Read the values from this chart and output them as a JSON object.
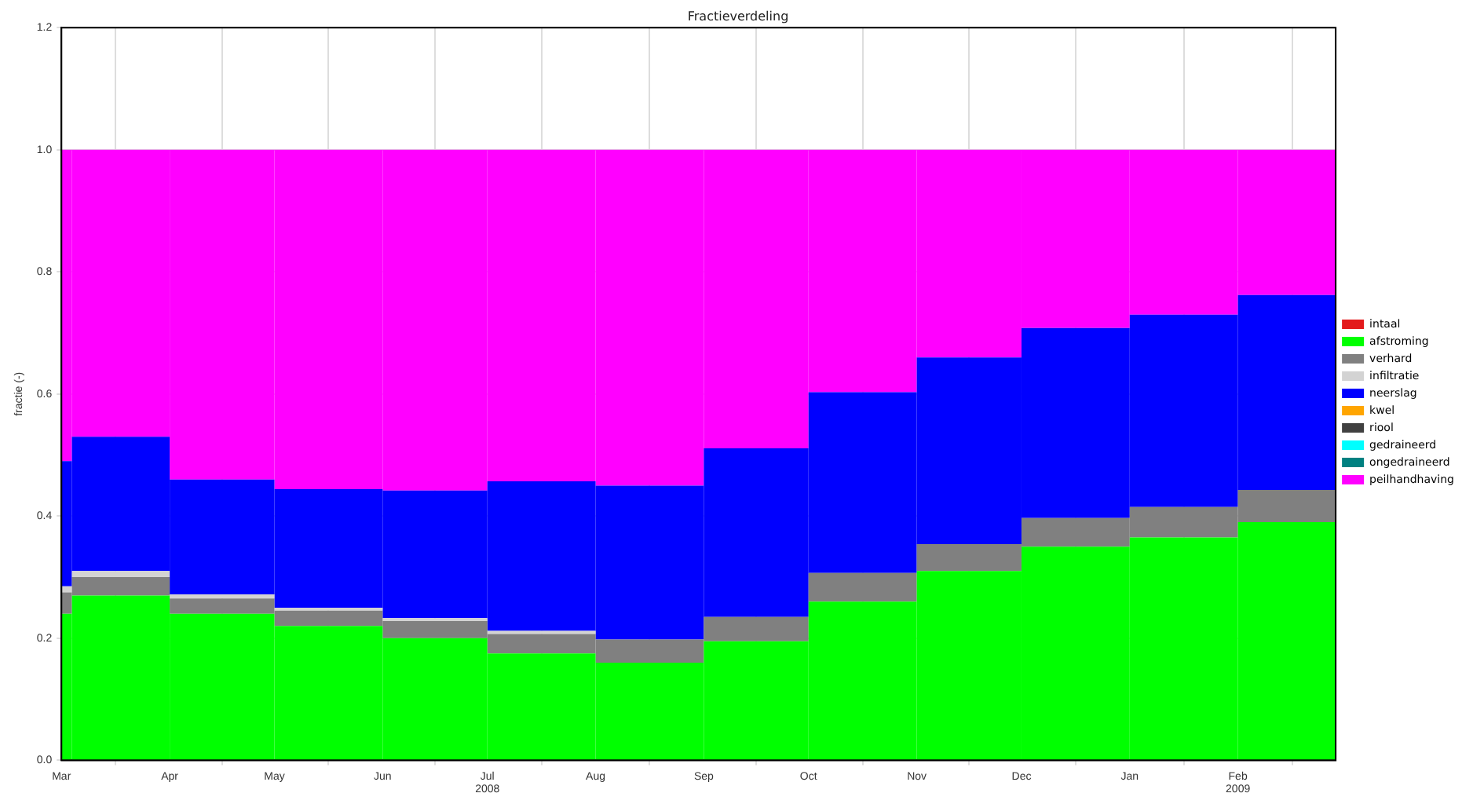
{
  "chart_data": {
    "type": "bar",
    "title": "Fractieverdeling",
    "ylabel": "fractie (-)",
    "stacked": true,
    "x": [
      "2008-03-02T12:00",
      "2008-03-18",
      "2008-04-16",
      "2008-05-16T12:00",
      "2008-06-16",
      "2008-07-16T12:00",
      "2008-08-16T12:00",
      "2008-09-16",
      "2008-10-16T12:00",
      "2008-11-16",
      "2008-12-16T12:00",
      "2009-01-16T12:00",
      "2009-02-15"
    ],
    "xlim": [
      "2008-03-01",
      "2009-03-01"
    ],
    "xticks": [
      {
        "value": "2008-03-01",
        "label": "Mar"
      },
      {
        "value": "2008-04-01",
        "label": "Apr"
      },
      {
        "value": "2008-05-01",
        "label": "May"
      },
      {
        "value": "2008-06-01",
        "label": "Jun"
      },
      {
        "value": "2008-07-01",
        "label": "Jul\n2008"
      },
      {
        "value": "2008-08-01",
        "label": "Aug"
      },
      {
        "value": "2008-09-01",
        "label": "Sep"
      },
      {
        "value": "2008-10-01",
        "label": "Oct"
      },
      {
        "value": "2008-11-01",
        "label": "Nov"
      },
      {
        "value": "2008-12-01",
        "label": "Dec"
      },
      {
        "value": "2009-01-01",
        "label": "Jan"
      },
      {
        "value": "2009-02-01",
        "label": "Feb\n2009"
      }
    ],
    "ylim": [
      0,
      1.2
    ],
    "yticks": [
      {
        "value": 0,
        "label": "0.0"
      },
      {
        "value": 0.2,
        "label": "0.2"
      },
      {
        "value": 0.4,
        "label": "0.4"
      },
      {
        "value": 0.6,
        "label": "0.6"
      },
      {
        "value": 0.8,
        "label": "0.8"
      },
      {
        "value": 1,
        "label": "1.0"
      },
      {
        "value": 1.2,
        "label": "1.2"
      }
    ],
    "grid": true,
    "legend": "right",
    "series": [
      {
        "name": "intaal",
        "color": "#e31a1c",
        "values": [
          0,
          0,
          0,
          0,
          0,
          0,
          0,
          0,
          0,
          0,
          0,
          0,
          0
        ]
      },
      {
        "name": "afstroming",
        "color": "#00ff00",
        "values": [
          0.24,
          0.27,
          0.24,
          0.22,
          0.2,
          0.175,
          0.16,
          0.195,
          0.26,
          0.31,
          0.35,
          0.365,
          0.39
        ]
      },
      {
        "name": "verhard",
        "color": "#808080",
        "values": [
          0.035,
          0.03,
          0.025,
          0.025,
          0.028,
          0.032,
          0.038,
          0.04,
          0.047,
          0.044,
          0.047,
          0.05,
          0.053
        ]
      },
      {
        "name": "infiltratie",
        "color": "#d3d3d3",
        "values": [
          0.01,
          0.01,
          0.007,
          0.005,
          0.005,
          0.005,
          0,
          0,
          0,
          0,
          0,
          0,
          0
        ]
      },
      {
        "name": "neerslag",
        "color": "#0000ff",
        "values": [
          0.205,
          0.22,
          0.188,
          0.194,
          0.209,
          0.245,
          0.252,
          0.276,
          0.296,
          0.306,
          0.311,
          0.315,
          0.319
        ]
      },
      {
        "name": "kwel",
        "color": "#ffa500",
        "values": [
          0,
          0,
          0,
          0,
          0,
          0,
          0,
          0,
          0,
          0,
          0,
          0,
          0
        ]
      },
      {
        "name": "riool",
        "color": "#404040",
        "values": [
          0,
          0,
          0,
          0,
          0,
          0,
          0,
          0,
          0,
          0,
          0,
          0,
          0
        ]
      },
      {
        "name": "gedraineerd",
        "color": "#00ffff",
        "values": [
          0,
          0,
          0,
          0,
          0,
          0,
          0,
          0,
          0,
          0,
          0,
          0,
          0
        ]
      },
      {
        "name": "ongedraineerd",
        "color": "#008080",
        "values": [
          0,
          0,
          0,
          0,
          0,
          0,
          0,
          0,
          0,
          0,
          0,
          0,
          0
        ]
      },
      {
        "name": "peilhandhaving",
        "color": "#ff00ff",
        "values": [
          0.51,
          0.47,
          0.54,
          0.556,
          0.558,
          0.543,
          0.55,
          0.489,
          0.397,
          0.34,
          0.292,
          0.27,
          0.238
        ]
      }
    ]
  }
}
